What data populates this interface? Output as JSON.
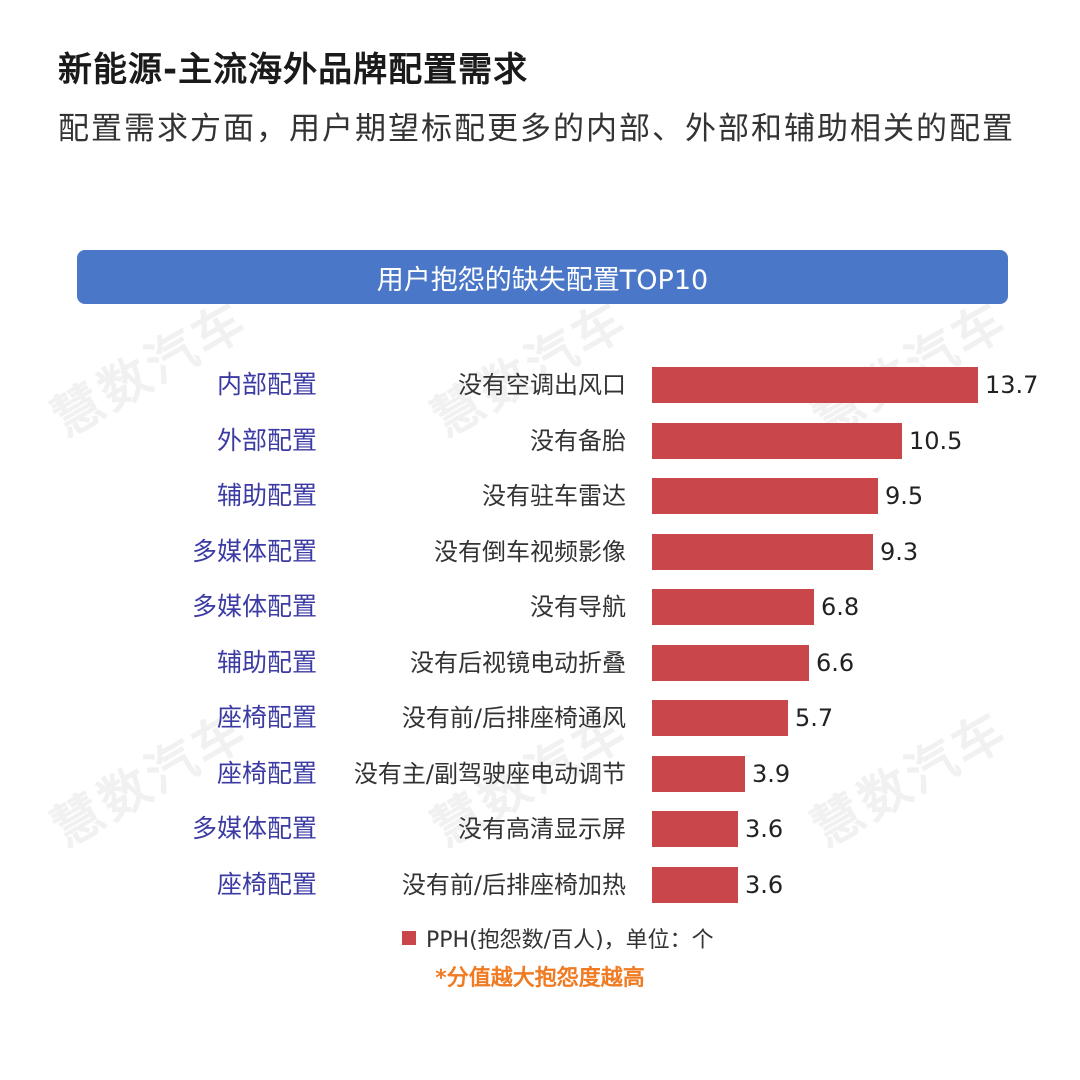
{
  "title": "新能源-主流海外品牌配置需求",
  "subtitle": "配置需求方面，用户期望标配更多的内部、外部和辅助相关的配置",
  "watermark": "慧数汽车",
  "chart_data": {
    "type": "bar",
    "orientation": "horizontal",
    "title": "用户抱怨的缺失配置TOP10",
    "categories": [
      "没有空调出风口",
      "没有备胎",
      "没有驻车雷达",
      "没有倒车视频影像",
      "没有导航",
      "没有后视镜电动折叠",
      "没有前/后排座椅通风",
      "没有主/副驾驶座电动调节",
      "没有高清显示屏",
      "没有前/后排座椅加热"
    ],
    "groups": [
      "内部配置",
      "外部配置",
      "辅助配置",
      "多媒体配置",
      "多媒体配置",
      "辅助配置",
      "座椅配置",
      "座椅配置",
      "多媒体配置",
      "座椅配置"
    ],
    "series": [
      {
        "name": "PPH(抱怨数/百人)，单位：个",
        "values": [
          13.7,
          10.5,
          9.5,
          9.3,
          6.8,
          6.6,
          5.7,
          3.9,
          3.6,
          3.6
        ]
      }
    ],
    "xlim": [
      0,
      13.7
    ],
    "grid": false,
    "legend_position": "bottom",
    "note": "*分值越大抱怨度越高",
    "bar_color": "#c9474a",
    "group_color": "#3b3ba3"
  }
}
